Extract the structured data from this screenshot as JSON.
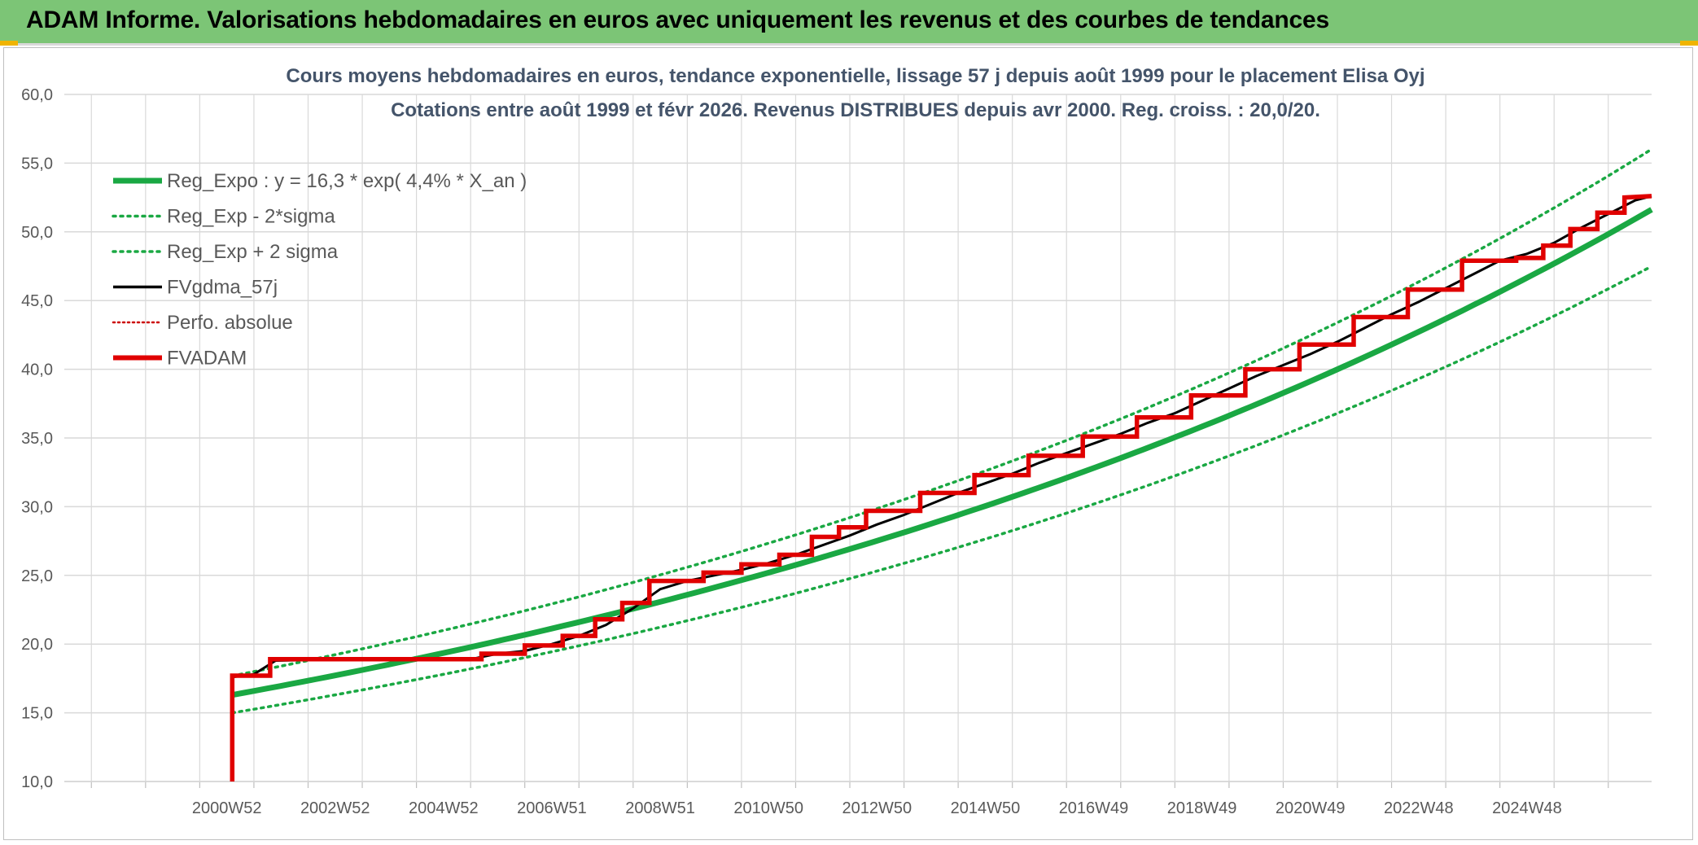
{
  "banner": {
    "title": "ADAM Informe. Valorisations hebdomadaires en euros avec uniquement les revenus et des courbes de tendances"
  },
  "colors": {
    "banner_bg": "#7cc576",
    "reg_expo": "#1aa843",
    "sigma_bands": "#1aa843",
    "fvgdma": "#000000",
    "perfo": "#cc0000",
    "fvadam": "#e00000",
    "grid": "#d9d9d9"
  },
  "chart_data": {
    "type": "line",
    "title_line1": "Cours moyens hebdomadaires en euros, tendance exponentielle, lissage 57 j depuis août 1999 pour le placement Elisa Oyj",
    "title_line2": "Cotations entre août 1999 et févr 2026. Revenus DISTRIBUES depuis avr 2000. Reg. croiss. : 20,0/20.",
    "ylim": [
      10,
      60
    ],
    "y_ticks": [
      "10,0",
      "15,0",
      "20,0",
      "25,0",
      "30,0",
      "35,0",
      "40,0",
      "45,0",
      "50,0",
      "55,0",
      "60,0"
    ],
    "x_tick_labels": [
      "2000W52",
      "2002W52",
      "2004W52",
      "2006W51",
      "2008W51",
      "2010W50",
      "2012W50",
      "2014W50",
      "2016W49",
      "2018W49",
      "2020W49",
      "2022W48",
      "2024W48"
    ],
    "x_range_years": [
      1996.5,
      2025.8
    ],
    "grid": true,
    "legend_position": "top-left",
    "legend": [
      {
        "key": "reg_expo",
        "label": "Reg_Expo : y = 16,3 * exp( 4,4% *  X_an )",
        "style": "solid-thick-green"
      },
      {
        "key": "reg_minus",
        "label": "Reg_Exp - 2*sigma",
        "style": "dotted-green"
      },
      {
        "key": "reg_plus",
        "label": "Reg_Exp + 2 sigma",
        "style": "dotted-green"
      },
      {
        "key": "fvgdma",
        "label": "FVgdma_57j",
        "style": "solid-black"
      },
      {
        "key": "perfo",
        "label": "Perfo. absolue",
        "style": "dotted-red"
      },
      {
        "key": "fvadam",
        "label": "FVADAM",
        "style": "solid-thick-red"
      }
    ],
    "regression": {
      "a": 16.3,
      "rate": 0.044,
      "x0": 1999.6,
      "x1": 2025.8,
      "sigma_minus_factor": 0.92,
      "sigma_plus_factor": 1.085
    },
    "series": [
      {
        "key": "fvadam",
        "name": "FVADAM",
        "x": [
          1999.6,
          1999.6,
          2000.3,
          2000.3,
          2004.2,
          2004.2,
          2005.0,
          2005.0,
          2005.7,
          2005.7,
          2006.3,
          2006.3,
          2006.8,
          2006.8,
          2007.3,
          2007.3,
          2008.3,
          2008.3,
          2009.0,
          2009.0,
          2009.7,
          2009.7,
          2010.3,
          2010.3,
          2010.8,
          2010.8,
          2011.3,
          2011.3,
          2012.3,
          2012.3,
          2013.3,
          2013.3,
          2014.3,
          2014.3,
          2015.3,
          2015.3,
          2016.3,
          2016.3,
          2017.3,
          2017.3,
          2018.3,
          2018.3,
          2019.3,
          2019.3,
          2020.3,
          2020.3,
          2021.3,
          2021.3,
          2022.3,
          2022.3,
          2023.3,
          2023.3,
          2023.8,
          2023.8,
          2024.3,
          2024.3,
          2024.8,
          2024.8,
          2025.3,
          2025.3,
          2025.8
        ],
        "y": [
          10.0,
          17.7,
          17.7,
          18.9,
          18.9,
          19.3,
          19.3,
          19.9,
          19.9,
          20.6,
          20.6,
          21.8,
          21.8,
          23.0,
          23.0,
          24.6,
          24.6,
          25.2,
          25.2,
          25.8,
          25.8,
          26.5,
          26.5,
          27.8,
          27.8,
          28.5,
          28.5,
          29.7,
          29.7,
          31.0,
          31.0,
          32.3,
          32.3,
          33.7,
          33.7,
          35.1,
          35.1,
          36.5,
          36.5,
          38.1,
          38.1,
          40.0,
          40.0,
          41.8,
          41.8,
          43.8,
          43.8,
          45.8,
          45.8,
          47.9,
          47.9,
          48.1,
          48.1,
          49.0,
          49.0,
          50.2,
          50.2,
          51.4,
          51.4,
          52.5,
          52.6
        ]
      },
      {
        "key": "fvgdma",
        "name": "FVgdma_57j",
        "x": [
          1999.6,
          2000.0,
          2000.4,
          2002.0,
          2004.0,
          2004.5,
          2005.0,
          2005.5,
          2006.0,
          2006.5,
          2007.0,
          2007.5,
          2008.0,
          2008.5,
          2009.0,
          2009.5,
          2010.0,
          2010.5,
          2011.0,
          2011.5,
          2012.0,
          2012.5,
          2013.0,
          2013.5,
          2014.0,
          2014.5,
          2015.0,
          2015.5,
          2016.0,
          2016.5,
          2017.0,
          2017.5,
          2018.0,
          2018.5,
          2019.0,
          2019.5,
          2020.0,
          2020.5,
          2021.0,
          2021.5,
          2022.0,
          2022.5,
          2023.0,
          2023.5,
          2024.0,
          2024.5,
          2025.0,
          2025.5,
          2025.8
        ],
        "y": [
          17.6,
          17.8,
          18.8,
          18.9,
          18.9,
          19.3,
          19.5,
          20.0,
          20.6,
          21.4,
          22.6,
          24.0,
          24.6,
          25.0,
          25.4,
          25.9,
          26.5,
          27.2,
          27.9,
          28.7,
          29.4,
          30.2,
          31.0,
          31.7,
          32.4,
          33.2,
          33.9,
          34.6,
          35.3,
          36.1,
          36.8,
          37.7,
          38.6,
          39.5,
          40.3,
          41.1,
          42.0,
          43.0,
          44.0,
          44.9,
          45.9,
          46.9,
          47.9,
          48.4,
          49.2,
          50.3,
          51.3,
          52.3,
          52.6
        ]
      }
    ]
  }
}
